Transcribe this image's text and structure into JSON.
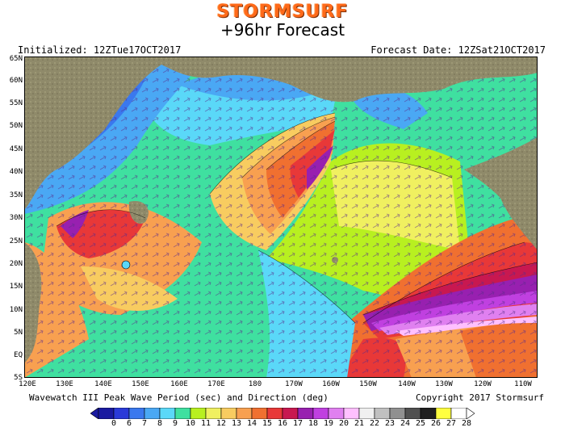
{
  "brand": "STORMSURF",
  "subtitle": "+96hr Forecast",
  "initialized": "Initialized: 12ZTue17OCT2017",
  "forecast_date": "Forecast Date: 12ZSat21OCT2017",
  "map": {
    "lat_labels": [
      "65N",
      "60N",
      "55N",
      "50N",
      "45N",
      "40N",
      "35N",
      "30N",
      "25N",
      "20N",
      "15N",
      "10N",
      "5N",
      "EQ",
      "5S"
    ],
    "lon_labels": [
      "120E",
      "130E",
      "140E",
      "150E",
      "160E",
      "170E",
      "180",
      "170W",
      "160W",
      "150W",
      "140W",
      "130W",
      "120W",
      "110W"
    ],
    "region": "North Pacific",
    "field": "peak wave period (sec)",
    "arrows": "wave direction",
    "colors": {
      "land": "#8f8a6a",
      "ocean_base": "#3fe0a0",
      "outline": "#000000"
    }
  },
  "footer": {
    "left": "Wavewatch III Peak Wave Period (sec) and Direction (deg)",
    "right": "Copyright 2017 Stormsurf"
  },
  "colorbar": {
    "values": [
      "0",
      "6",
      "7",
      "8",
      "9",
      "10",
      "11",
      "12",
      "13",
      "14",
      "15",
      "16",
      "17",
      "18",
      "19",
      "20",
      "21",
      "22",
      "23",
      "24",
      "25",
      "26",
      "27",
      "28"
    ],
    "colors": [
      "#1a1aa0",
      "#2a3ad8",
      "#3a78ee",
      "#4aa8f4",
      "#5ad8f8",
      "#3fe0a0",
      "#b8f020",
      "#f0f060",
      "#f8cc60",
      "#f8a050",
      "#f07030",
      "#e83838",
      "#c81850",
      "#9820b0",
      "#c040e0",
      "#e080f0",
      "#ffc0ff",
      "#f0f0f0",
      "#c0c0c0",
      "#909090",
      "#505050",
      "#202020",
      "#ffff40",
      "#ffffff"
    ]
  }
}
